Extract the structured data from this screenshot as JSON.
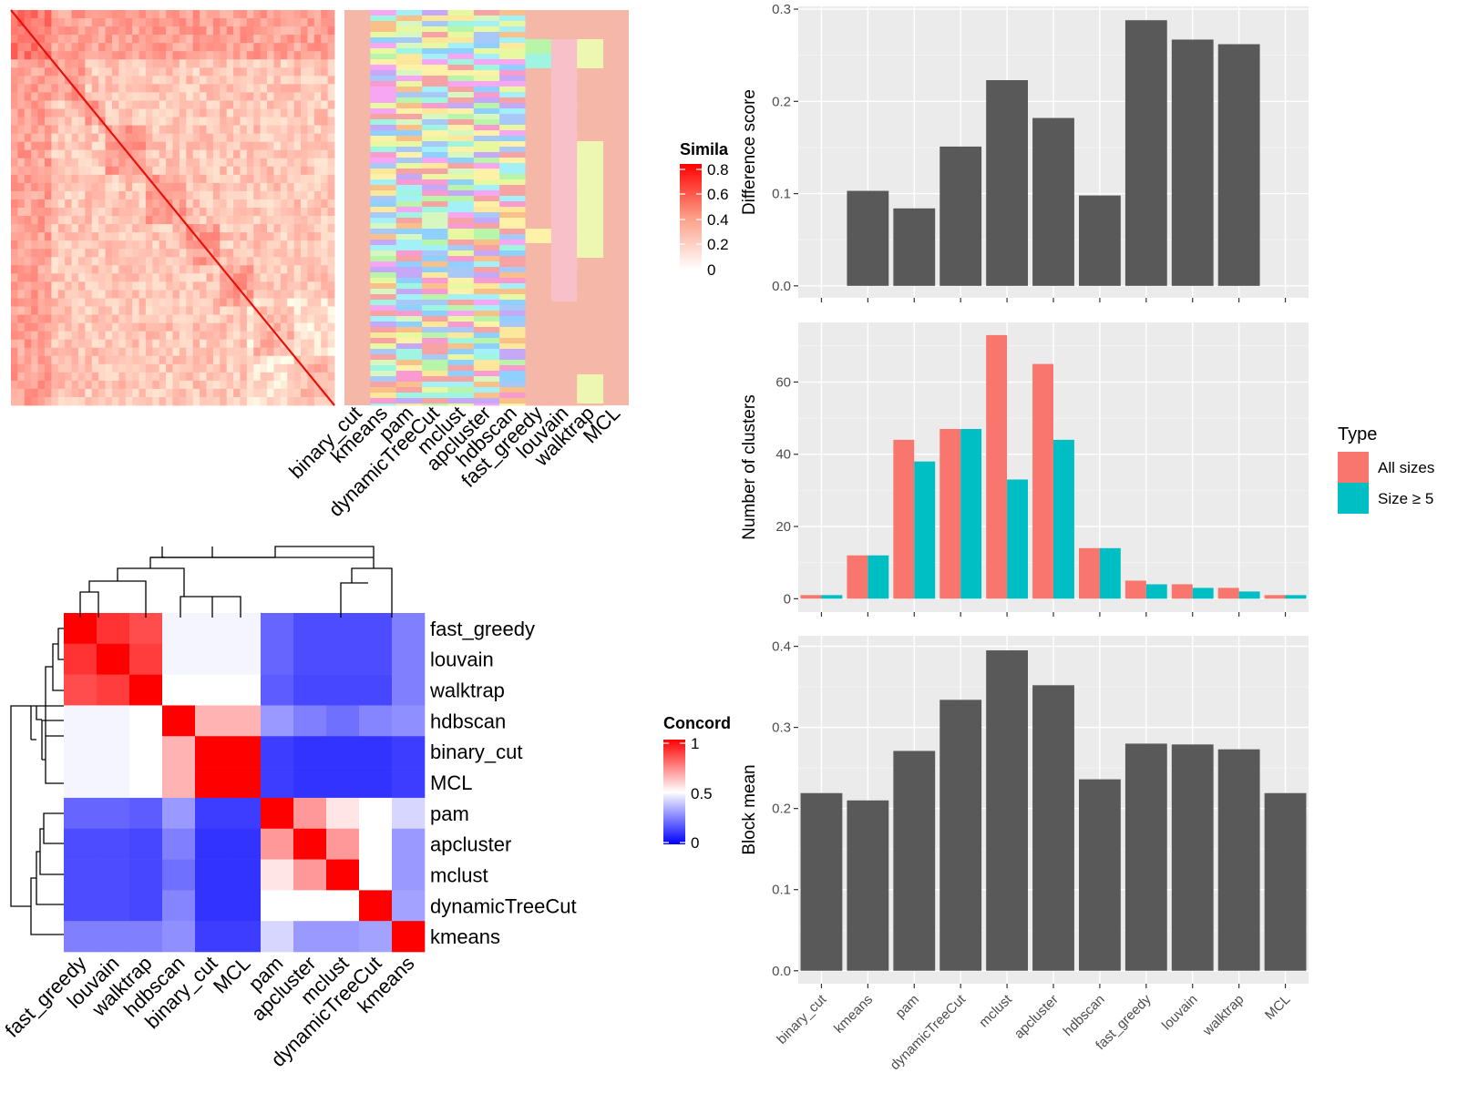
{
  "similarity_legend_title": "Simila",
  "similarity_legend_ticks": [
    "0.8",
    "0.6",
    "0.4",
    "0.2",
    "0"
  ],
  "method_columns": [
    "binary_cut",
    "kmeans",
    "pam",
    "dynamicTreeCut",
    "mclust",
    "apcluster",
    "hdbscan",
    "fast_greedy",
    "louvain",
    "walktrap",
    "MCL"
  ],
  "concordance_legend_title": "Concord",
  "concordance_legend_ticks": [
    "1",
    "0.5",
    "0"
  ],
  "concordance_order": [
    "fast_greedy",
    "louvain",
    "walktrap",
    "hdbscan",
    "binary_cut",
    "MCL",
    "pam",
    "apcluster",
    "mclust",
    "dynamicTreeCut",
    "kmeans"
  ],
  "colors": {
    "bar_grey": "#595959",
    "panel_bg": "#ebebeb",
    "all_sizes": "#F8766D",
    "size_ge_5": "#00BFC4",
    "concord_high": "#ff0000",
    "concord_mid": "#ffffff",
    "concord_low": "#0000ff"
  },
  "chart_data": [
    {
      "type": "heatmap",
      "name": "similarity",
      "legend_title": "Simila",
      "legend_ticks": [
        "0.8",
        "0.6",
        "0.4",
        "0.2",
        "0"
      ],
      "columns": [
        "binary_cut",
        "kmeans",
        "pam",
        "dynamicTreeCut",
        "mclust",
        "apcluster",
        "hdbscan",
        "fast_greedy",
        "louvain",
        "walktrap",
        "MCL"
      ]
    },
    {
      "type": "heatmap",
      "name": "concordance",
      "legend_title": "Concord",
      "legend_ticks": [
        "1",
        "0.5",
        "0"
      ],
      "rows": [
        "fast_greedy",
        "louvain",
        "walktrap",
        "hdbscan",
        "binary_cut",
        "MCL",
        "pam",
        "apcluster",
        "mclust",
        "dynamicTreeCut",
        "kmeans"
      ],
      "columns": [
        "fast_greedy",
        "louvain",
        "walktrap",
        "hdbscan",
        "binary_cut",
        "MCL",
        "pam",
        "apcluster",
        "mclust",
        "dynamicTreeCut",
        "kmeans"
      ],
      "values": [
        [
          1.0,
          0.9,
          0.85,
          0.48,
          0.48,
          0.48,
          0.2,
          0.15,
          0.15,
          0.15,
          0.25
        ],
        [
          0.9,
          1.0,
          0.88,
          0.48,
          0.48,
          0.48,
          0.2,
          0.15,
          0.15,
          0.15,
          0.25
        ],
        [
          0.85,
          0.88,
          1.0,
          0.5,
          0.5,
          0.5,
          0.18,
          0.14,
          0.14,
          0.14,
          0.25
        ],
        [
          0.48,
          0.48,
          0.5,
          1.0,
          0.65,
          0.65,
          0.3,
          0.25,
          0.22,
          0.26,
          0.28
        ],
        [
          0.48,
          0.48,
          0.5,
          0.65,
          1.0,
          1.0,
          0.12,
          0.1,
          0.1,
          0.1,
          0.12
        ],
        [
          0.48,
          0.48,
          0.5,
          0.65,
          1.0,
          1.0,
          0.12,
          0.1,
          0.1,
          0.1,
          0.12
        ],
        [
          0.2,
          0.2,
          0.18,
          0.3,
          0.12,
          0.12,
          1.0,
          0.7,
          0.55,
          0.5,
          0.42
        ],
        [
          0.15,
          0.15,
          0.14,
          0.25,
          0.1,
          0.1,
          0.7,
          1.0,
          0.7,
          0.5,
          0.3
        ],
        [
          0.15,
          0.15,
          0.14,
          0.22,
          0.1,
          0.1,
          0.55,
          0.7,
          1.0,
          0.5,
          0.3
        ],
        [
          0.15,
          0.15,
          0.14,
          0.26,
          0.1,
          0.1,
          0.5,
          0.5,
          0.5,
          1.0,
          0.32
        ],
        [
          0.25,
          0.25,
          0.25,
          0.28,
          0.12,
          0.12,
          0.42,
          0.3,
          0.3,
          0.32,
          1.0
        ]
      ]
    },
    {
      "type": "bar",
      "name": "difference",
      "categories": [
        "binary_cut",
        "kmeans",
        "pam",
        "dynamicTreeCut",
        "mclust",
        "apcluster",
        "hdbscan",
        "fast_greedy",
        "louvain",
        "walktrap",
        "MCL"
      ],
      "values": [
        0,
        0.103,
        0.084,
        0.151,
        0.223,
        0.182,
        0.098,
        0.288,
        0.267,
        0.262,
        0
      ],
      "ylabel": "Difference score",
      "ylim": [
        -0.013,
        0.303
      ],
      "yticks": [
        0.0,
        0.1,
        0.2,
        0.3
      ],
      "ytick_labels": [
        "0.0",
        "0.1",
        "0.2",
        "0.3"
      ],
      "grid": true
    },
    {
      "type": "bar",
      "name": "clusters",
      "categories": [
        "binary_cut",
        "kmeans",
        "pam",
        "dynamicTreeCut",
        "mclust",
        "apcluster",
        "hdbscan",
        "fast_greedy",
        "louvain",
        "walktrap",
        "MCL"
      ],
      "series": [
        {
          "name": "All sizes",
          "values": [
            1,
            12,
            44,
            47,
            73,
            65,
            14,
            5,
            4,
            3,
            1
          ]
        },
        {
          "name": "Size ≥ 5",
          "values": [
            1,
            12,
            38,
            47,
            33,
            44,
            14,
            4,
            3,
            2,
            1
          ]
        }
      ],
      "ylabel": "Number of clusters",
      "ylim": [
        -3.7,
        76.5
      ],
      "yticks": [
        0,
        20,
        40,
        60
      ],
      "ytick_labels": [
        "0",
        "20",
        "40",
        "60"
      ],
      "legend_title": "Type",
      "legend_position": "right",
      "grid": true
    },
    {
      "type": "bar",
      "name": "blockmean",
      "categories": [
        "binary_cut",
        "kmeans",
        "pam",
        "dynamicTreeCut",
        "mclust",
        "apcluster",
        "hdbscan",
        "fast_greedy",
        "louvain",
        "walktrap",
        "MCL"
      ],
      "values": [
        0.219,
        0.21,
        0.271,
        0.334,
        0.395,
        0.352,
        0.236,
        0.28,
        0.279,
        0.273,
        0.219
      ],
      "ylabel": "Block mean",
      "ylim": [
        -0.016,
        0.413
      ],
      "yticks": [
        0.0,
        0.1,
        0.2,
        0.3,
        0.4
      ],
      "ytick_labels": [
        "0.0",
        "0.1",
        "0.2",
        "0.3",
        "0.4"
      ],
      "grid": true
    }
  ]
}
